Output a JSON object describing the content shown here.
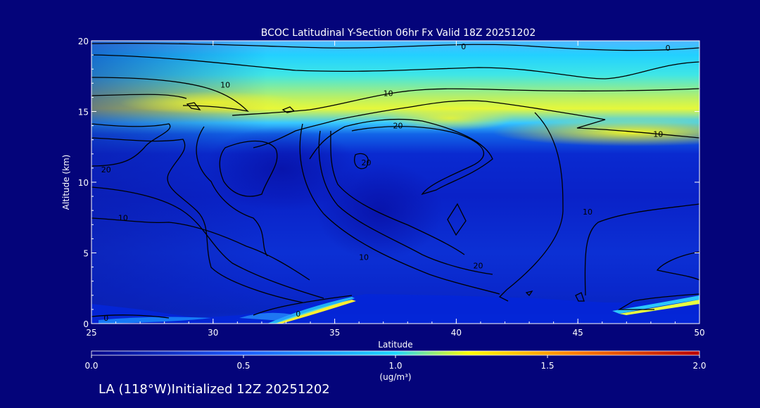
{
  "chart_data": {
    "type": "heatmap",
    "title": "BCOC Latitudinal Y-Section 06hr  Fx Valid 18Z 20251202",
    "xlabel": "Latitude",
    "ylabel": "Altitude (km)",
    "xlim": [
      25,
      50
    ],
    "ylim": [
      0,
      20
    ],
    "x_ticks": [
      "25",
      "30",
      "35",
      "40",
      "45",
      "50"
    ],
    "y_ticks": [
      "0",
      "5",
      "10",
      "15",
      "20"
    ],
    "colorbar": {
      "min": 0.0,
      "max": 2.0,
      "ticks": [
        "0.0",
        "0.5",
        "1.0",
        "1.5",
        "2.0"
      ],
      "unit_label": "(ug/m³)",
      "colors": [
        "#05058a",
        "#1e5cff",
        "#1fd8ff",
        "#ffff00",
        "#ff7a00",
        "#b80000"
      ]
    },
    "field_description": {
      "shaded_peak_layer_km": [
        13,
        16
      ],
      "shaded_peak_value": 1.1,
      "surface_layer_value_north": 1.0
    },
    "contour_labels": [
      {
        "text": "0",
        "lat": 40.3,
        "alt": 19.6
      },
      {
        "text": "0",
        "lat": 48.7,
        "alt": 19.5
      },
      {
        "text": "10",
        "lat": 30.5,
        "alt": 16.9
      },
      {
        "text": "10",
        "lat": 37.2,
        "alt": 16.3
      },
      {
        "text": "10",
        "lat": 48.3,
        "alt": 13.4
      },
      {
        "text": "20",
        "lat": 37.6,
        "alt": 14.0
      },
      {
        "text": "20",
        "lat": 25.6,
        "alt": 10.9
      },
      {
        "text": "20",
        "lat": 36.3,
        "alt": 11.4
      },
      {
        "text": "10",
        "lat": 26.3,
        "alt": 7.5
      },
      {
        "text": "10",
        "lat": 36.2,
        "alt": 4.7
      },
      {
        "text": "20",
        "lat": 40.9,
        "alt": 4.1
      },
      {
        "text": "10",
        "lat": 45.4,
        "alt": 7.9
      },
      {
        "text": "0",
        "lat": 25.6,
        "alt": 0.4
      },
      {
        "text": "0",
        "lat": 33.5,
        "alt": 0.7
      }
    ]
  },
  "footer": {
    "text": "LA (118°W)Initialized 12Z 20251202"
  }
}
